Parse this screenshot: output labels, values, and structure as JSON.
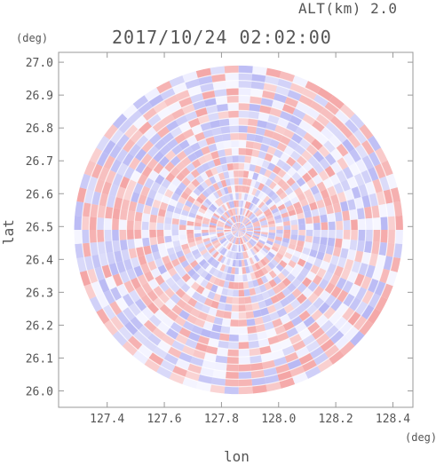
{
  "header": {
    "altitude": "ALT(km) 2.0",
    "timestamp": "2017/10/24 02:02:00"
  },
  "chart_data": {
    "type": "heatmap",
    "title": "2017/10/24 02:02:00",
    "subtitle": "ALT(km) 2.0",
    "xlabel": "lon",
    "ylabel": "lat",
    "x_unit": "(deg)",
    "y_unit": "(deg)",
    "xlim": [
      127.23,
      128.47
    ],
    "ylim": [
      25.95,
      27.03
    ],
    "x_ticks": [
      "127.4",
      "127.6",
      "127.8",
      "128.0",
      "128.2",
      "128.4"
    ],
    "x_tick_values": [
      127.4,
      127.6,
      127.8,
      128.0,
      128.2,
      128.4
    ],
    "y_ticks": [
      "26.0",
      "26.1",
      "26.2",
      "26.3",
      "26.4",
      "26.5",
      "26.6",
      "26.7",
      "26.8",
      "26.9",
      "27.0"
    ],
    "y_tick_values": [
      26.0,
      26.1,
      26.2,
      26.3,
      26.4,
      26.5,
      26.6,
      26.7,
      26.8,
      26.9,
      27.0
    ],
    "radar_center": {
      "lon": 127.86,
      "lat": 26.49
    },
    "radar_radius_deg_lat": 0.5,
    "field": "radar doppler velocity-like polar field",
    "colors": {
      "positive": "#f4a5a5",
      "negative": "#b8b8f4",
      "frame": "#999999"
    }
  }
}
